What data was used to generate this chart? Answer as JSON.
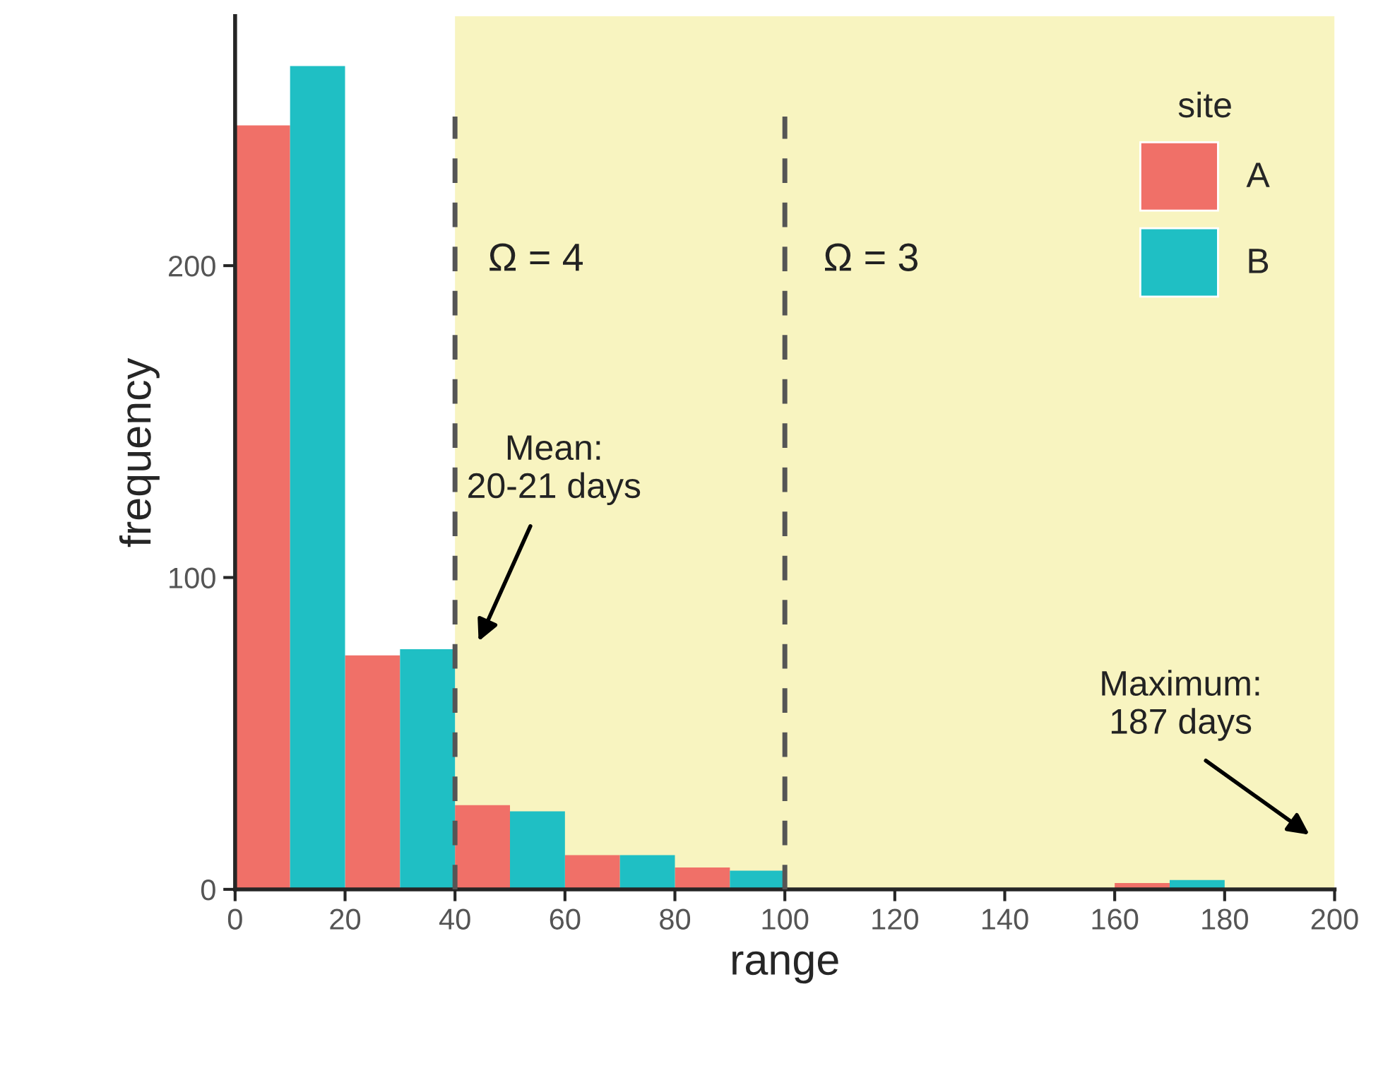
{
  "chart_data": {
    "type": "histogram",
    "xlabel": "range",
    "ylabel": "frequency",
    "legend_title": "site",
    "bins": [
      0,
      20,
      40,
      60,
      80,
      100,
      120,
      140,
      160,
      180,
      200
    ],
    "series": [
      {
        "name": "A",
        "color": "#f07068",
        "values": [
          245,
          75,
          27,
          11,
          7,
          0,
          0,
          0,
          2,
          0
        ]
      },
      {
        "name": "B",
        "color": "#1fbfc4",
        "values": [
          264,
          77,
          25,
          11,
          6,
          0,
          0,
          0,
          3,
          0
        ]
      }
    ],
    "xlim": [
      0,
      200
    ],
    "ylim": [
      0,
      280
    ],
    "xticks": [
      0,
      20,
      40,
      60,
      80,
      100,
      120,
      140,
      160,
      180,
      200
    ],
    "yticks": [
      0,
      100,
      200
    ],
    "bands": [
      {
        "axis": "x",
        "from": 40,
        "to": 200,
        "color": "#f8f4c0"
      }
    ],
    "ref_lines": [
      {
        "axis": "x",
        "value": 40,
        "color": "#555555",
        "line_style": "dashed"
      },
      {
        "axis": "x",
        "value": 100,
        "color": "#555555",
        "line_style": "dashed"
      }
    ],
    "annotations": [
      "Ω = 4",
      "Ω = 3",
      "Mean:\n20-21 days",
      "Maximum:\n187 days"
    ],
    "legend": "top right",
    "grid": false
  }
}
